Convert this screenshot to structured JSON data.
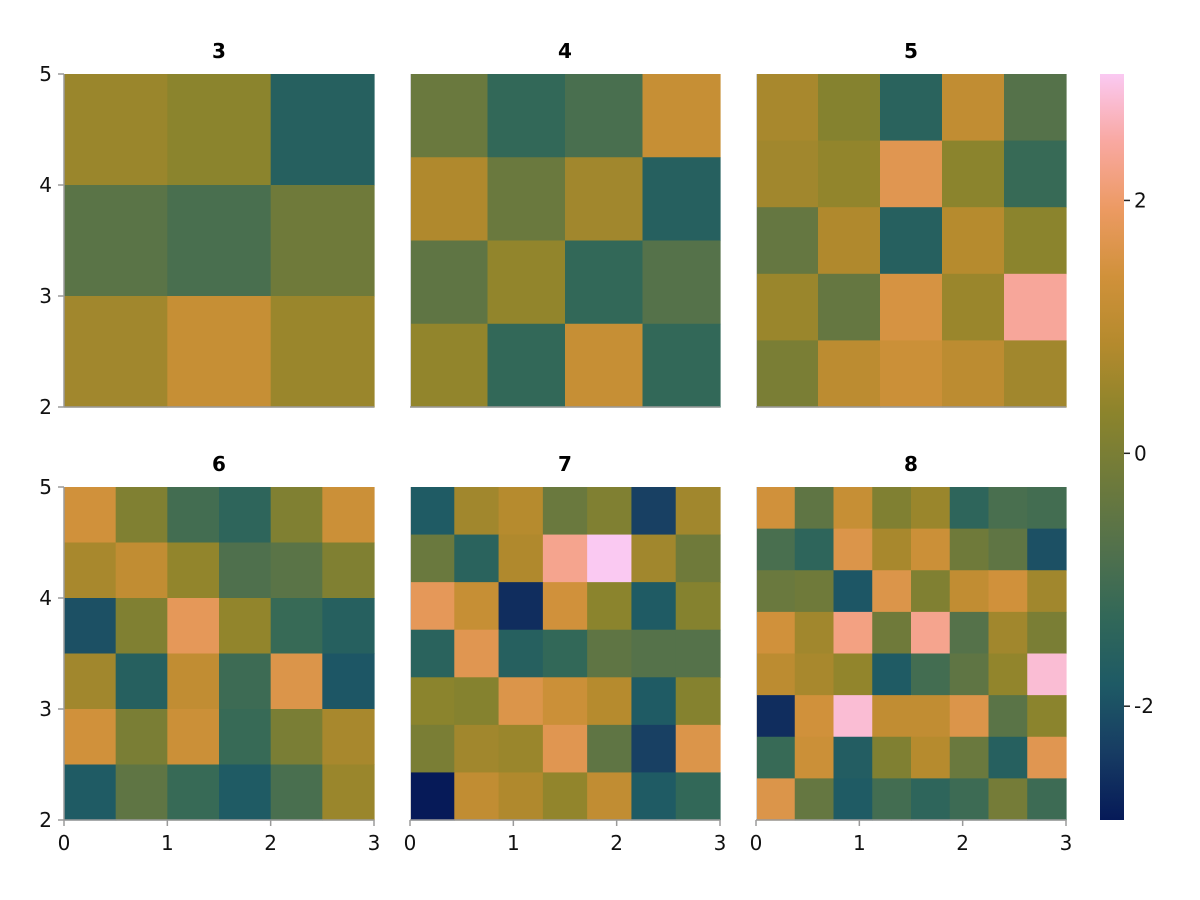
{
  "chart_data": {
    "type": "heatmap",
    "x_range": [
      0,
      3
    ],
    "y_range": [
      2,
      5
    ],
    "x_ticks": [
      "0",
      "1",
      "2",
      "3"
    ],
    "y_ticks": [
      "2",
      "3",
      "4",
      "5"
    ],
    "colorbar": {
      "range": [
        -2.9,
        3.0
      ],
      "ticks": [
        "-2",
        "0",
        "2"
      ],
      "tick_values": [
        -2,
        0,
        2
      ],
      "colormap": [
        "#061a58",
        "#173c63",
        "#1e5a65",
        "#326858",
        "#52714c",
        "#6e7a3b",
        "#8c842c",
        "#b48a2d",
        "#d0913a",
        "#ec9a62",
        "#f9a8a1",
        "#fac9f2"
      ]
    },
    "panels": [
      {
        "title": "3",
        "values": [
          [
            0.5,
            0.3,
            -1.6
          ],
          [
            -0.6,
            -0.9,
            -0.2
          ],
          [
            0.6,
            1.2,
            0.5
          ]
        ]
      },
      {
        "title": "4",
        "values": [
          [
            -0.3,
            -1.3,
            -0.9,
            1.2
          ],
          [
            0.8,
            -0.3,
            0.6,
            -1.6
          ],
          [
            -0.5,
            0.4,
            -1.3,
            -0.7
          ],
          [
            0.4,
            -1.3,
            1.2,
            -1.3
          ]
        ]
      },
      {
        "title": "5",
        "values": [
          [
            0.7,
            0.2,
            -1.5,
            1.1,
            -0.7
          ],
          [
            0.6,
            0.4,
            1.7,
            0.3,
            -1.2
          ],
          [
            -0.4,
            0.8,
            -1.6,
            0.9,
            0.3
          ],
          [
            0.5,
            -0.4,
            1.5,
            0.5,
            2.4
          ],
          [
            0.0,
            1.0,
            1.3,
            1.0,
            0.6
          ]
        ]
      },
      {
        "title": "6",
        "values": [
          [
            1.4,
            0.1,
            -1.0,
            -1.4,
            0.1,
            1.3
          ],
          [
            0.7,
            1.1,
            0.4,
            -0.8,
            -0.6,
            0.1
          ],
          [
            -2.0,
            0.1,
            1.8,
            0.4,
            -1.2,
            -1.6
          ],
          [
            0.6,
            -1.6,
            1.1,
            -1.1,
            1.6,
            -1.9
          ],
          [
            1.4,
            0.0,
            1.3,
            -1.2,
            0.0,
            0.7
          ],
          [
            -1.8,
            -0.5,
            -1.2,
            -1.8,
            -0.9,
            0.5
          ]
        ]
      },
      {
        "title": "7",
        "values": [
          [
            -1.8,
            0.6,
            0.9,
            -0.3,
            0.1,
            -2.3,
            0.6
          ],
          [
            -0.3,
            -1.5,
            0.8,
            2.3,
            3.0,
            0.6,
            -0.2
          ],
          [
            1.8,
            1.2,
            -2.6,
            1.4,
            0.3,
            -1.8,
            0.2
          ],
          [
            -1.5,
            1.7,
            -1.6,
            -1.3,
            -0.5,
            -0.7,
            -0.7
          ],
          [
            0.3,
            0.2,
            1.6,
            1.3,
            0.9,
            -1.8,
            0.2
          ],
          [
            0.0,
            0.6,
            0.5,
            1.7,
            -0.5,
            -2.3,
            1.6
          ],
          [
            -2.9,
            1.1,
            0.8,
            0.4,
            1.1,
            -1.8,
            -1.3
          ]
        ]
      },
      {
        "title": "8",
        "values": [
          [
            1.4,
            -0.5,
            1.2,
            0.1,
            0.5,
            -1.4,
            -0.9,
            -1.0
          ],
          [
            -0.9,
            -1.4,
            1.6,
            0.7,
            1.3,
            -0.2,
            -0.5,
            -2.0
          ],
          [
            -0.3,
            -0.2,
            -1.9,
            1.6,
            0.1,
            1.1,
            1.4,
            0.6
          ],
          [
            1.4,
            0.6,
            2.2,
            -0.2,
            2.3,
            -0.7,
            0.6,
            0.0
          ],
          [
            1.0,
            0.7,
            0.4,
            -1.8,
            -1.0,
            -0.5,
            0.4,
            2.8
          ],
          [
            -2.6,
            1.4,
            2.8,
            1.1,
            1.1,
            1.6,
            -0.6,
            0.3
          ],
          [
            -1.2,
            1.3,
            -1.7,
            0.1,
            0.9,
            -0.3,
            -1.6,
            1.7
          ],
          [
            1.6,
            -0.4,
            -1.8,
            -1.0,
            -1.4,
            -1.1,
            -0.1,
            -1.1
          ]
        ]
      }
    ]
  }
}
